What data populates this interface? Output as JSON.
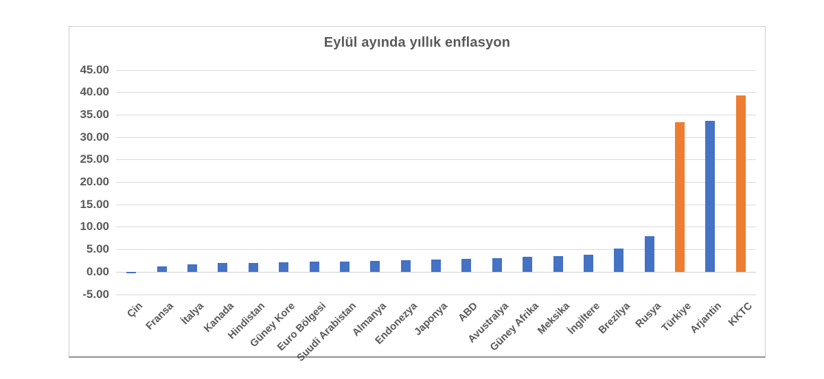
{
  "page": {
    "background_color": "#ffffff"
  },
  "chart_data": {
    "type": "bar",
    "title": "Eylül ayında yıllık enflasyon",
    "categories": [
      "Çin",
      "Fransa",
      "İtalya",
      "Kanada",
      "Hindistan",
      "Güney Kore",
      "Euro Bölgesi",
      "Suudi Arabistan",
      "Almanya",
      "Endonezya",
      "Japonya",
      "ABD",
      "Avustralya",
      "Güney Afrika",
      "Meksika",
      "İngiltere",
      "Brezilya",
      "Rusya",
      "Türkiye",
      "Arjantin",
      "KKTC"
    ],
    "values": [
      -0.4,
      1.2,
      1.6,
      1.9,
      2.0,
      2.1,
      2.2,
      2.3,
      2.4,
      2.6,
      2.7,
      2.9,
      3.0,
      3.3,
      3.5,
      3.8,
      5.2,
      8.0,
      33.3,
      33.6,
      39.3
    ],
    "bar_colors": [
      "#4472c4",
      "#4472c4",
      "#4472c4",
      "#4472c4",
      "#4472c4",
      "#4472c4",
      "#4472c4",
      "#4472c4",
      "#4472c4",
      "#4472c4",
      "#4472c4",
      "#4472c4",
      "#4472c4",
      "#4472c4",
      "#4472c4",
      "#4472c4",
      "#4472c4",
      "#4472c4",
      "#ed7d31",
      "#4472c4",
      "#ed7d31"
    ],
    "highlighted_categories": [
      "Türkiye",
      "KKTC"
    ],
    "colors": {
      "default_bar": "#4472c4",
      "highlight_bar": "#ed7d31",
      "axis_text": "#595959",
      "gridline": "#d9d9d9"
    },
    "xlabel": "",
    "ylabel": "",
    "ylim": [
      -5,
      45
    ],
    "ytick_step": 5,
    "ytick_labels": [
      "45.00",
      "40.00",
      "35.00",
      "30.00",
      "25.00",
      "20.00",
      "15.00",
      "10.00",
      "5.00",
      "0.00",
      "-5.00"
    ],
    "grid": "horizontal",
    "legend": "none",
    "x_label_rotation_deg": -45
  }
}
